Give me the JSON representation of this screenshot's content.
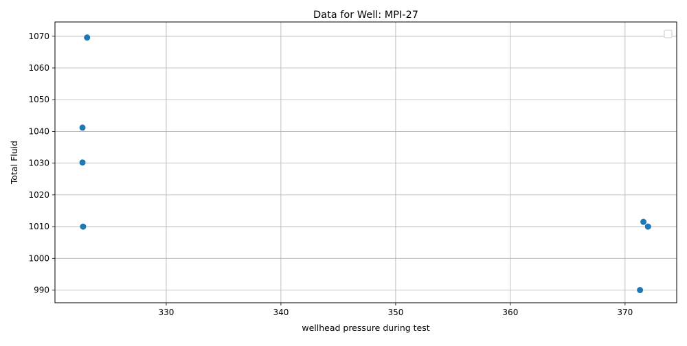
{
  "chart_data": {
    "type": "scatter",
    "title": "Data for Well: MPI-27",
    "xlabel": "wellhead pressure during test",
    "ylabel": "Total Fluid",
    "xlim": [
      320.3,
      374.5
    ],
    "ylim": [
      986,
      1074.5
    ],
    "xticks": [
      330,
      340,
      350,
      360,
      370
    ],
    "yticks": [
      990,
      1000,
      1010,
      1020,
      1030,
      1040,
      1050,
      1060,
      1070
    ],
    "grid": true,
    "legend": {
      "position": "upper-right",
      "entries": []
    },
    "series": [
      {
        "color": "#1f77b4",
        "points": [
          {
            "x": 323.1,
            "y": 1069.6
          },
          {
            "x": 322.7,
            "y": 1041.2
          },
          {
            "x": 322.7,
            "y": 1030.2
          },
          {
            "x": 322.75,
            "y": 1010.0
          },
          {
            "x": 371.6,
            "y": 1011.5
          },
          {
            "x": 372.0,
            "y": 1010.0
          },
          {
            "x": 371.3,
            "y": 990.0
          }
        ]
      }
    ]
  }
}
